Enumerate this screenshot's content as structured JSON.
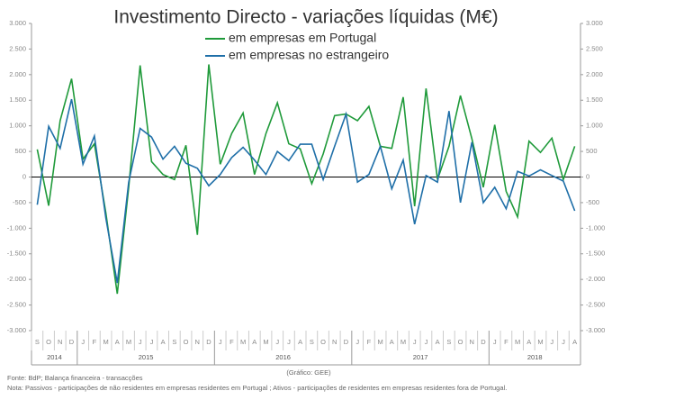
{
  "chart_data": {
    "type": "line",
    "title": "Investimento Directo - variações líquidas (M€)",
    "categories": [
      "S",
      "O",
      "N",
      "D",
      "J",
      "F",
      "M",
      "A",
      "M",
      "J",
      "J",
      "A",
      "S",
      "O",
      "N",
      "D",
      "J",
      "F",
      "M",
      "A",
      "M",
      "J",
      "J",
      "A",
      "S",
      "O",
      "N",
      "D",
      "J",
      "F",
      "M",
      "A",
      "M",
      "J",
      "J",
      "A",
      "S",
      "O",
      "N",
      "D",
      "J",
      "F",
      "M",
      "A",
      "M",
      "J",
      "J",
      "A"
    ],
    "years": [
      "2014",
      "2015",
      "2016",
      "2017",
      "2018"
    ],
    "series": [
      {
        "name": "em empresas em Portugal",
        "color": "#1f9a3a",
        "values": [
          540,
          -560,
          1100,
          1920,
          350,
          650,
          -700,
          -2280,
          -200,
          2180,
          300,
          50,
          -50,
          620,
          -1130,
          2200,
          250,
          850,
          1250,
          50,
          850,
          1450,
          650,
          550,
          -130,
          450,
          1200,
          1230,
          1100,
          1380,
          600,
          560,
          1560,
          -570,
          1730,
          -50,
          600,
          1590,
          750,
          -200,
          1020,
          -280,
          -780,
          700,
          480,
          760,
          -50,
          600
        ]
      },
      {
        "name": "em empresas no estrangeiro",
        "color": "#1f6fa8",
        "values": [
          -540,
          990,
          560,
          1520,
          250,
          800,
          -800,
          -2070,
          -100,
          950,
          780,
          350,
          600,
          270,
          170,
          -170,
          50,
          380,
          580,
          330,
          50,
          500,
          320,
          640,
          640,
          -50,
          600,
          1230,
          -100,
          50,
          600,
          -230,
          330,
          -920,
          30,
          -100,
          1290,
          -500,
          680,
          -500,
          -200,
          -620,
          110,
          20,
          140,
          30,
          -80,
          -660
        ]
      }
    ],
    "ylim": [
      -3000,
      3000
    ],
    "yticks": [
      {
        "value": -3000,
        "label": "-3.000"
      },
      {
        "value": -2500,
        "label": "-2.500"
      },
      {
        "value": -2000,
        "label": "-2.000"
      },
      {
        "value": -1500,
        "label": "-1.500"
      },
      {
        "value": -1000,
        "label": "-1.000"
      },
      -500,
      0,
      500,
      {
        "value": 1000,
        "label": "1.000"
      },
      {
        "value": 1500,
        "label": "1.500"
      },
      {
        "value": 2000,
        "label": "2.000"
      },
      {
        "value": 2500,
        "label": "2.500"
      },
      {
        "value": 3000,
        "label": "3.000"
      }
    ],
    "y2lim": [
      -3000,
      3000
    ],
    "y2ticks": [
      {
        "value": -3000,
        "label": "-3.000"
      },
      {
        "value": -2500,
        "label": "-2.500"
      },
      {
        "value": -2000,
        "label": "-2.000"
      },
      {
        "value": -1500,
        "label": "-1.500"
      },
      {
        "value": -1000,
        "label": "-1.000"
      },
      -500,
      0,
      500,
      {
        "value": 1000,
        "label": "1.000"
      },
      {
        "value": 1500,
        "label": "1.500"
      },
      {
        "value": 2000,
        "label": "2.000"
      },
      {
        "value": 2500,
        "label": "2.500"
      },
      {
        "value": 3000,
        "label": "3.000"
      }
    ],
    "credit": "(Gráfico: GEE)",
    "source": "Fonte: BdP; Balança financeira - transacções",
    "note": "Nota: Passivos - participações de não residentes em empresas residentes em Portugal ; Ativos - participações de residentes em empresas residentes fora de Portugal."
  }
}
